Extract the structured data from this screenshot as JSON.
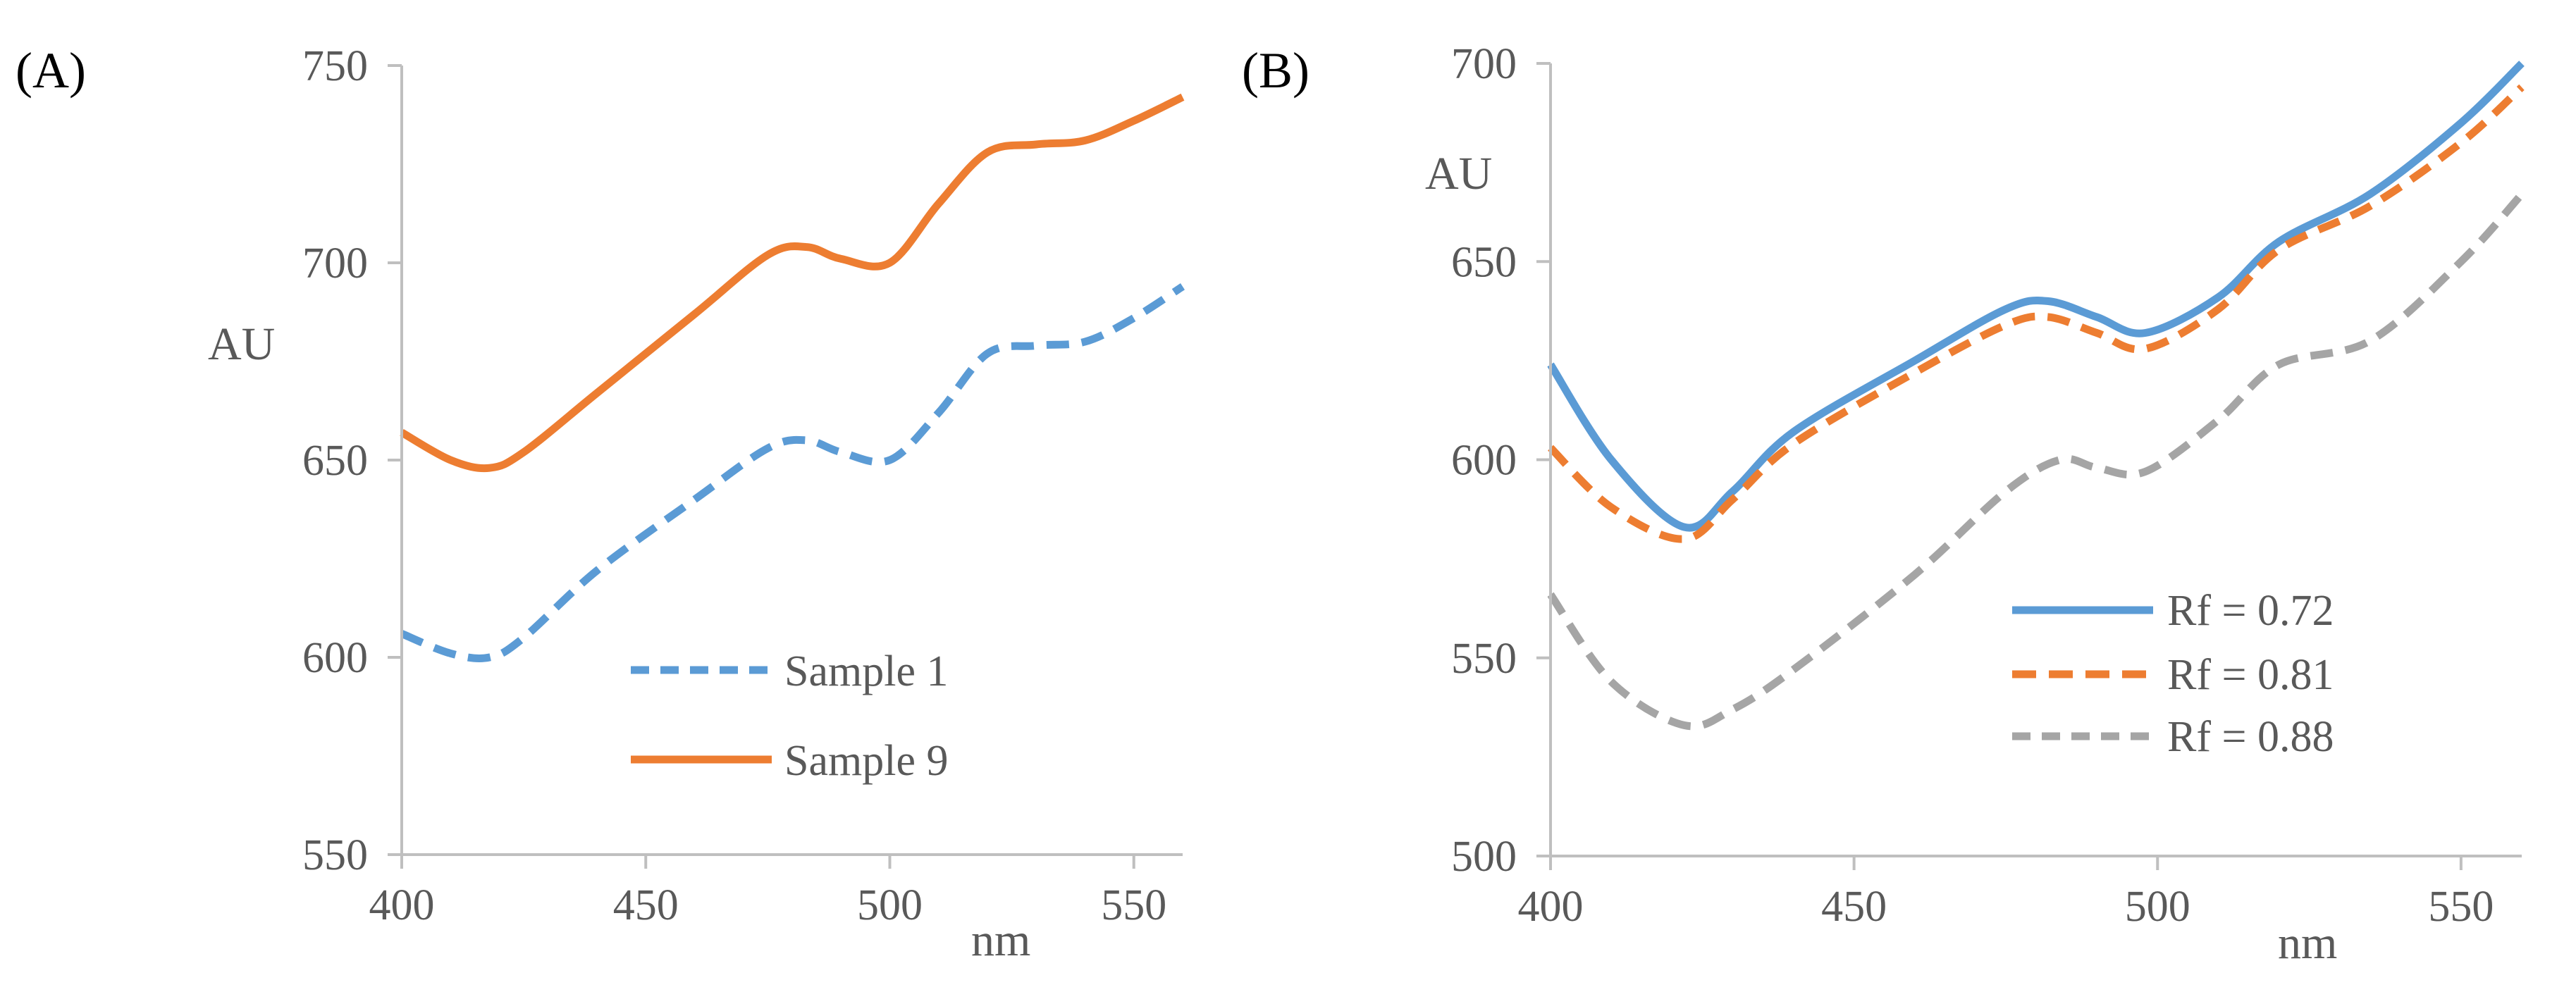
{
  "chart_data": [
    {
      "panel_label": "(A)",
      "type": "line",
      "xlabel": "nm",
      "ylabel": "AU",
      "xlim": [
        400,
        560
      ],
      "ylim": [
        550,
        750
      ],
      "xticks": [
        400,
        450,
        500,
        550
      ],
      "yticks": [
        550,
        600,
        650,
        700,
        750
      ],
      "grid": false,
      "legend_position": "bottom-center",
      "series": [
        {
          "name": "Sample 1",
          "style": "dashed",
          "color": "#5b9bd5",
          "x": [
            400,
            410,
            418,
            425,
            440,
            460,
            475,
            483,
            490,
            500,
            510,
            520,
            530,
            540,
            550,
            560
          ],
          "y": [
            606,
            601,
            600,
            605,
            622,
            640,
            653,
            655,
            652,
            650,
            662,
            677,
            679,
            680,
            686,
            694
          ]
        },
        {
          "name": "Sample 9",
          "style": "solid",
          "color": "#ed7d31",
          "x": [
            400,
            410,
            418,
            425,
            440,
            460,
            475,
            483,
            490,
            500,
            510,
            520,
            530,
            540,
            550,
            560
          ],
          "y": [
            657,
            650,
            648,
            652,
            667,
            687,
            702,
            704,
            701,
            700,
            715,
            728,
            730,
            731,
            736,
            742
          ]
        }
      ]
    },
    {
      "panel_label": "(B)",
      "type": "line",
      "xlabel": "nm",
      "ylabel": "AU",
      "xlim": [
        400,
        560
      ],
      "ylim": [
        500,
        700
      ],
      "xticks": [
        400,
        450,
        500,
        550
      ],
      "yticks": [
        500,
        550,
        600,
        650,
        700
      ],
      "grid": false,
      "legend_position": "bottom-right",
      "series": [
        {
          "name": "Rf = 0.72",
          "style": "solid",
          "color": "#5b9bd5",
          "x": [
            400,
            410,
            422,
            430,
            440,
            460,
            475,
            482,
            490,
            498,
            510,
            520,
            535,
            550,
            560
          ],
          "y": [
            624,
            600,
            583,
            592,
            607,
            625,
            638,
            640,
            636,
            632,
            641,
            655,
            667,
            685,
            700
          ]
        },
        {
          "name": "Rf = 0.81",
          "style": "dashed",
          "color": "#ed7d31",
          "x": [
            400,
            410,
            422,
            430,
            440,
            460,
            475,
            482,
            490,
            498,
            510,
            520,
            535,
            550,
            560
          ],
          "y": [
            603,
            588,
            580,
            590,
            604,
            622,
            634,
            636,
            632,
            628,
            638,
            653,
            664,
            680,
            694
          ]
        },
        {
          "name": "Rf = 0.88",
          "style": "dashed",
          "color": "#a5a5a5",
          "x": [
            400,
            410,
            422,
            430,
            440,
            460,
            475,
            484,
            490,
            498,
            510,
            520,
            535,
            550,
            560
          ],
          "y": [
            566,
            544,
            533,
            537,
            547,
            571,
            592,
            600,
            598,
            597,
            610,
            624,
            630,
            650,
            667
          ]
        }
      ]
    }
  ]
}
